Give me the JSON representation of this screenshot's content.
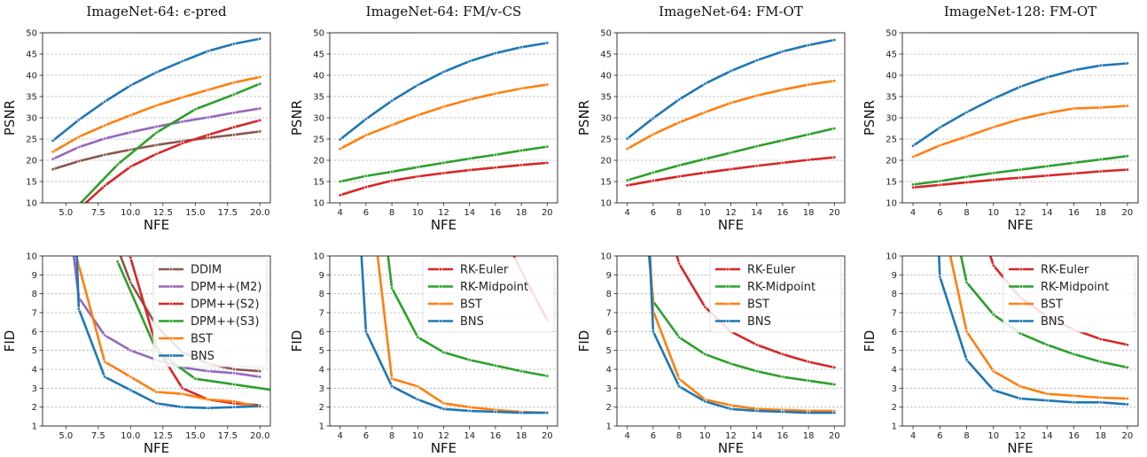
{
  "colors": {
    "DDIM": "#8c564b",
    "DPM++(M2)": "#9467bd",
    "DPM++(S2)": "#d62728",
    "DPM++(S3)": "#2ca02c",
    "RK-Euler": "#d62728",
    "RK-Midpoint": "#2ca02c",
    "BST": "#ff7f0e",
    "BNS": "#1f77b4"
  },
  "chart_data": [
    {
      "type": "line",
      "title": "ImageNet-64: ϵ-pred",
      "xlabel": "NFE",
      "ylabel": "PSNR",
      "xlim": [
        3.2,
        20.8
      ],
      "ylim": [
        10,
        50
      ],
      "xticks": [
        5.0,
        7.5,
        10.0,
        12.5,
        15.0,
        17.5,
        20.0
      ],
      "xticklabels": [
        "5.0",
        "7.5",
        "10.0",
        "12.5",
        "15.0",
        "17.5",
        "20.0"
      ],
      "yticks": [
        10,
        15,
        20,
        25,
        30,
        35,
        40,
        45,
        50
      ],
      "grid": "y",
      "legend": null,
      "series": [
        {
          "name": "DDIM",
          "x": [
            4,
            6,
            8,
            10,
            12,
            14,
            16,
            18,
            20
          ],
          "values": [
            17.9,
            19.8,
            21.3,
            22.5,
            23.6,
            24.5,
            25.3,
            26.0,
            26.8
          ]
        },
        {
          "name": "DPM++(M2)",
          "x": [
            4,
            6,
            8,
            10,
            12,
            14,
            16,
            18,
            20
          ],
          "values": [
            20.3,
            23.1,
            25.1,
            26.6,
            27.9,
            29.1,
            30.1,
            31.2,
            32.2
          ]
        },
        {
          "name": "DPM++(S2)",
          "x": [
            6,
            8,
            10,
            12,
            14,
            16,
            18,
            20
          ],
          "values": [
            8.5,
            14.0,
            18.5,
            21.5,
            24.0,
            26.0,
            27.8,
            29.4
          ]
        },
        {
          "name": "DPM++(S3)",
          "x": [
            6,
            9,
            12,
            15,
            18,
            20
          ],
          "values": [
            9.5,
            19.0,
            26.5,
            32.0,
            35.5,
            38.0
          ]
        },
        {
          "name": "BST",
          "x": [
            4,
            6,
            8,
            10,
            12,
            14,
            16,
            18,
            20
          ],
          "values": [
            22.0,
            25.5,
            28.2,
            30.6,
            32.9,
            34.8,
            36.6,
            38.3,
            39.6
          ]
        },
        {
          "name": "BNS",
          "x": [
            4,
            6,
            8,
            10,
            12,
            14,
            16,
            18,
            20
          ],
          "values": [
            24.6,
            29.5,
            33.8,
            37.6,
            40.7,
            43.3,
            45.7,
            47.4,
            48.6
          ]
        }
      ]
    },
    {
      "type": "line",
      "title": "ImageNet-64: FM/v-CS",
      "xlabel": "NFE",
      "ylabel": "PSNR",
      "xlim": [
        3.2,
        20.8
      ],
      "ylim": [
        10,
        50
      ],
      "xticks": [
        4,
        6,
        8,
        10,
        12,
        14,
        16,
        18,
        20
      ],
      "xticklabels": [
        "4",
        "6",
        "8",
        "10",
        "12",
        "14",
        "16",
        "18",
        "20"
      ],
      "yticks": [
        10,
        15,
        20,
        25,
        30,
        35,
        40,
        45,
        50
      ],
      "grid": "y",
      "legend": null,
      "series": [
        {
          "name": "RK-Euler",
          "x": [
            4,
            6,
            8,
            10,
            12,
            14,
            16,
            18,
            20
          ],
          "values": [
            11.8,
            13.7,
            15.2,
            16.2,
            17.0,
            17.7,
            18.3,
            18.9,
            19.4
          ]
        },
        {
          "name": "RK-Midpoint",
          "x": [
            4,
            6,
            8,
            10,
            12,
            14,
            16,
            18,
            20
          ],
          "values": [
            15.0,
            16.3,
            17.3,
            18.4,
            19.4,
            20.4,
            21.3,
            22.3,
            23.2
          ]
        },
        {
          "name": "BST",
          "x": [
            4,
            6,
            8,
            10,
            12,
            14,
            16,
            18,
            20
          ],
          "values": [
            22.7,
            25.9,
            28.3,
            30.6,
            32.6,
            34.3,
            35.7,
            36.9,
            37.8
          ]
        },
        {
          "name": "BNS",
          "x": [
            4,
            6,
            8,
            10,
            12,
            14,
            16,
            18,
            20
          ],
          "values": [
            24.9,
            29.7,
            34.0,
            37.7,
            40.8,
            43.3,
            45.2,
            46.6,
            47.6
          ]
        }
      ]
    },
    {
      "type": "line",
      "title": "ImageNet-64: FM-OT",
      "xlabel": "NFE",
      "ylabel": "PSNR",
      "xlim": [
        3.2,
        20.8
      ],
      "ylim": [
        10,
        50
      ],
      "xticks": [
        4,
        6,
        8,
        10,
        12,
        14,
        16,
        18,
        20
      ],
      "xticklabels": [
        "4",
        "6",
        "8",
        "10",
        "12",
        "14",
        "16",
        "18",
        "20"
      ],
      "yticks": [
        10,
        15,
        20,
        25,
        30,
        35,
        40,
        45,
        50
      ],
      "grid": "y",
      "legend": null,
      "series": [
        {
          "name": "RK-Euler",
          "x": [
            4,
            6,
            8,
            10,
            12,
            14,
            16,
            18,
            20
          ],
          "values": [
            14.1,
            15.2,
            16.2,
            17.1,
            17.9,
            18.7,
            19.4,
            20.1,
            20.7
          ]
        },
        {
          "name": "RK-Midpoint",
          "x": [
            4,
            6,
            8,
            10,
            12,
            14,
            16,
            18,
            20
          ],
          "values": [
            15.3,
            17.1,
            18.8,
            20.3,
            21.8,
            23.3,
            24.7,
            26.1,
            27.5
          ]
        },
        {
          "name": "BST",
          "x": [
            4,
            6,
            8,
            10,
            12,
            14,
            16,
            18,
            20
          ],
          "values": [
            22.7,
            26.1,
            28.9,
            31.3,
            33.5,
            35.2,
            36.6,
            37.8,
            38.7
          ]
        },
        {
          "name": "BNS",
          "x": [
            4,
            6,
            8,
            10,
            12,
            14,
            16,
            18,
            20
          ],
          "values": [
            25.1,
            29.9,
            34.3,
            38.0,
            41.0,
            43.5,
            45.6,
            47.1,
            48.3
          ]
        }
      ]
    },
    {
      "type": "line",
      "title": "ImageNet-128: FM-OT",
      "xlabel": "NFE",
      "ylabel": "PSNR",
      "xlim": [
        3.2,
        20.8
      ],
      "ylim": [
        10,
        50
      ],
      "xticks": [
        4,
        6,
        8,
        10,
        12,
        14,
        16,
        18,
        20
      ],
      "xticklabels": [
        "4",
        "6",
        "8",
        "10",
        "12",
        "14",
        "16",
        "18",
        "20"
      ],
      "yticks": [
        10,
        15,
        20,
        25,
        30,
        35,
        40,
        45,
        50
      ],
      "grid": "y",
      "legend": null,
      "series": [
        {
          "name": "RK-Euler",
          "x": [
            4,
            6,
            8,
            10,
            12,
            14,
            16,
            18,
            20
          ],
          "values": [
            13.6,
            14.2,
            14.8,
            15.4,
            15.9,
            16.4,
            16.9,
            17.4,
            17.8
          ]
        },
        {
          "name": "RK-Midpoint",
          "x": [
            4,
            6,
            8,
            10,
            12,
            14,
            16,
            18,
            20
          ],
          "values": [
            14.3,
            15.1,
            16.1,
            17.0,
            17.8,
            18.6,
            19.4,
            20.2,
            21.0
          ]
        },
        {
          "name": "BST",
          "x": [
            4,
            6,
            8,
            10,
            12,
            14,
            16,
            18,
            20
          ],
          "values": [
            20.8,
            23.5,
            25.6,
            27.8,
            29.7,
            31.1,
            32.2,
            32.4,
            32.8
          ]
        },
        {
          "name": "BNS",
          "x": [
            4,
            6,
            8,
            10,
            12,
            14,
            16,
            18,
            20
          ],
          "values": [
            23.4,
            27.7,
            31.3,
            34.5,
            37.3,
            39.5,
            41.2,
            42.3,
            42.8
          ]
        }
      ]
    },
    {
      "type": "line",
      "title": "",
      "xlabel": "NFE",
      "ylabel": "FID",
      "xlim": [
        3.2,
        20.8
      ],
      "ylim": [
        1,
        10
      ],
      "xticks": [
        5.0,
        7.5,
        10.0,
        12.5,
        15.0,
        17.5,
        20.0
      ],
      "xticklabels": [
        "5.0",
        "7.5",
        "10.0",
        "12.5",
        "15.0",
        "17.5",
        "20.0"
      ],
      "yticks": [
        1,
        2,
        3,
        4,
        5,
        6,
        7,
        8,
        9,
        10
      ],
      "grid": "y",
      "legend": "top-right",
      "series": [
        {
          "name": "DDIM",
          "x": [
            9,
            10,
            12,
            14,
            16,
            18,
            20
          ],
          "values": [
            10.4,
            8.6,
            6.3,
            4.9,
            4.3,
            4.0,
            3.9
          ]
        },
        {
          "name": "DPM++(M2)",
          "x": [
            5.5,
            6,
            8,
            10,
            12,
            14,
            16,
            18,
            20
          ],
          "values": [
            10.6,
            7.8,
            5.8,
            5.0,
            4.5,
            4.1,
            3.9,
            3.8,
            3.6
          ]
        },
        {
          "name": "DPM++(S2)",
          "x": [
            9.5,
            10,
            12,
            14,
            16,
            18,
            20
          ],
          "values": [
            10.6,
            9.9,
            5.2,
            3.0,
            2.4,
            2.2,
            2.1
          ]
        },
        {
          "name": "DPM++(S3)",
          "x": [
            9,
            12,
            15,
            18,
            21
          ],
          "values": [
            9.7,
            5.0,
            3.5,
            3.2,
            2.9
          ]
        },
        {
          "name": "BST",
          "x": [
            5.5,
            6,
            8,
            10,
            12,
            14,
            16,
            18,
            20
          ],
          "values": [
            10.8,
            9.5,
            4.4,
            3.6,
            2.8,
            2.7,
            2.4,
            2.3,
            2.0
          ]
        },
        {
          "name": "BNS",
          "x": [
            5.8,
            6,
            8,
            10,
            12,
            14,
            16,
            18,
            20
          ],
          "values": [
            10.8,
            7.2,
            3.6,
            2.9,
            2.2,
            2.0,
            1.95,
            2.0,
            2.05
          ]
        }
      ]
    },
    {
      "type": "line",
      "title": "",
      "xlabel": "NFE",
      "ylabel": "FID",
      "xlim": [
        3.2,
        20.8
      ],
      "ylim": [
        1,
        10
      ],
      "xticks": [
        4,
        6,
        8,
        10,
        12,
        14,
        16,
        18,
        20
      ],
      "xticklabels": [
        "4",
        "6",
        "8",
        "10",
        "12",
        "14",
        "16",
        "18",
        "20"
      ],
      "yticks": [
        1,
        2,
        3,
        4,
        5,
        6,
        7,
        8,
        9,
        10
      ],
      "grid": "y",
      "legend": "top-right",
      "series": [
        {
          "name": "RK-Euler",
          "x": [
            17,
            18,
            19,
            20
          ],
          "values": [
            10.6,
            9.2,
            7.9,
            6.6
          ]
        },
        {
          "name": "RK-Midpoint",
          "x": [
            7.6,
            8,
            10,
            12,
            14,
            16,
            18,
            20
          ],
          "values": [
            10.6,
            8.3,
            5.7,
            4.9,
            4.5,
            4.2,
            3.9,
            3.65
          ]
        },
        {
          "name": "BST",
          "x": [
            6.8,
            8,
            10,
            12,
            14,
            16,
            18,
            20
          ],
          "values": [
            10.6,
            3.5,
            3.1,
            2.2,
            2.0,
            1.85,
            1.75,
            1.7
          ]
        },
        {
          "name": "BNS",
          "x": [
            5.6,
            6,
            8,
            10,
            12,
            14,
            16,
            18,
            20
          ],
          "values": [
            10.6,
            6.0,
            3.1,
            2.4,
            1.9,
            1.8,
            1.75,
            1.7,
            1.7
          ]
        }
      ]
    },
    {
      "type": "line",
      "title": "",
      "xlabel": "NFE",
      "ylabel": "FID",
      "xlim": [
        3.2,
        20.8
      ],
      "ylim": [
        1,
        10
      ],
      "xticks": [
        4,
        6,
        8,
        10,
        12,
        14,
        16,
        18,
        20
      ],
      "xticklabels": [
        "4",
        "6",
        "8",
        "10",
        "12",
        "14",
        "16",
        "18",
        "20"
      ],
      "yticks": [
        1,
        2,
        3,
        4,
        5,
        6,
        7,
        8,
        9,
        10
      ],
      "grid": "y",
      "legend": "top-right",
      "series": [
        {
          "name": "RK-Euler",
          "x": [
            7.6,
            8,
            10,
            12,
            14,
            16,
            18,
            20
          ],
          "values": [
            10.6,
            9.6,
            7.3,
            6.0,
            5.3,
            4.8,
            4.4,
            4.1
          ]
        },
        {
          "name": "RK-Midpoint",
          "x": [
            5.6,
            6,
            8,
            10,
            12,
            14,
            16,
            18,
            20
          ],
          "values": [
            10.6,
            7.6,
            5.7,
            4.8,
            4.3,
            3.9,
            3.6,
            3.4,
            3.2
          ]
        },
        {
          "name": "BST",
          "x": [
            5.7,
            6,
            8,
            10,
            12,
            14,
            16,
            18,
            20
          ],
          "values": [
            10.6,
            7.1,
            3.5,
            2.4,
            2.1,
            1.9,
            1.85,
            1.8,
            1.8
          ]
        },
        {
          "name": "BNS",
          "x": [
            5.7,
            6,
            8,
            10,
            12,
            14,
            16,
            18,
            20
          ],
          "values": [
            10.6,
            6.0,
            3.1,
            2.3,
            1.9,
            1.8,
            1.75,
            1.7,
            1.7
          ]
        }
      ]
    },
    {
      "type": "line",
      "title": "",
      "xlabel": "NFE",
      "ylabel": "FID",
      "xlim": [
        3.2,
        20.8
      ],
      "ylim": [
        1,
        10
      ],
      "xticks": [
        4,
        6,
        8,
        10,
        12,
        14,
        16,
        18,
        20
      ],
      "xticklabels": [
        "4",
        "6",
        "8",
        "10",
        "12",
        "14",
        "16",
        "18",
        "20"
      ],
      "yticks": [
        1,
        2,
        3,
        4,
        5,
        6,
        7,
        8,
        9,
        10
      ],
      "grid": "y",
      "legend": "top-right",
      "series": [
        {
          "name": "RK-Euler",
          "x": [
            9.5,
            10,
            12,
            14,
            16,
            18,
            20
          ],
          "values": [
            10.6,
            9.5,
            7.8,
            6.8,
            6.1,
            5.6,
            5.3
          ]
        },
        {
          "name": "RK-Midpoint",
          "x": [
            7.4,
            8,
            10,
            12,
            14,
            16,
            18,
            20
          ],
          "values": [
            10.6,
            8.6,
            6.9,
            5.9,
            5.3,
            4.8,
            4.4,
            4.1
          ]
        },
        {
          "name": "BST",
          "x": [
            6.6,
            8,
            10,
            12,
            14,
            16,
            18,
            20
          ],
          "values": [
            10.6,
            6.0,
            3.9,
            3.1,
            2.7,
            2.6,
            2.5,
            2.45
          ]
        },
        {
          "name": "BNS",
          "x": [
            5.9,
            6,
            8,
            10,
            12,
            14,
            16,
            18,
            20
          ],
          "values": [
            10.6,
            8.9,
            4.5,
            2.9,
            2.45,
            2.35,
            2.25,
            2.25,
            2.15
          ]
        }
      ]
    }
  ]
}
